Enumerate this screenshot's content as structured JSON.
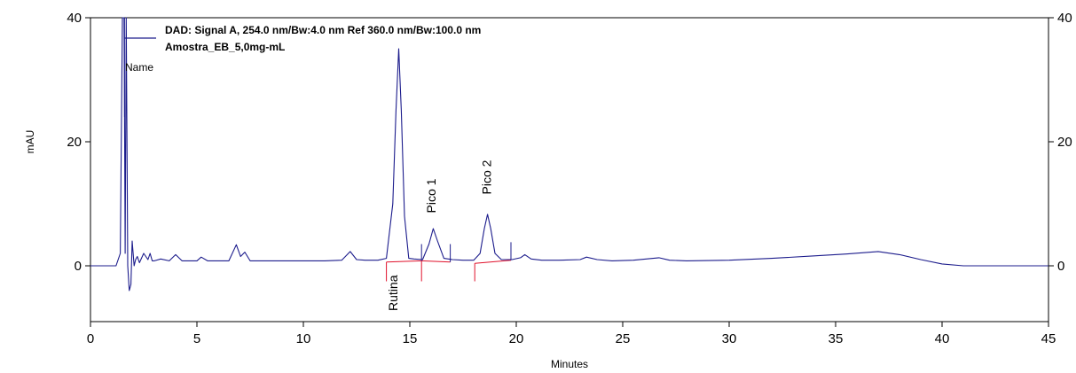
{
  "chart_data": {
    "type": "line",
    "xlabel": "Minutes",
    "ylabel": "mAU",
    "xlim": [
      0,
      45
    ],
    "ylim": [
      -9,
      40
    ],
    "x_ticks": [
      "0",
      "5",
      "10",
      "15",
      "20",
      "25",
      "30",
      "35",
      "40",
      "45"
    ],
    "y_ticks": [
      "0",
      "20",
      "40"
    ],
    "y_ticks_right": [
      "0",
      "20",
      "40"
    ],
    "legend": {
      "signal": "DAD: Signal A, 254.0 nm/Bw:4.0 nm Ref 360.0 nm/Bw:100.0 nm",
      "sample": "Amostra_EB_5,0mg-mL",
      "name_label": "Name"
    },
    "colors": {
      "trace": "#1c1c8c",
      "baseline": "#e0102a",
      "axis": "#000000"
    },
    "series": [
      {
        "name": "Amostra_EB_5,0mg-mL",
        "x": [
          0,
          1.2,
          1.4,
          1.5,
          1.58,
          1.63,
          1.68,
          1.75,
          1.82,
          1.9,
          1.96,
          2.05,
          2.12,
          2.2,
          2.3,
          2.5,
          2.7,
          2.8,
          2.9,
          3.0,
          3.3,
          3.7,
          4.0,
          4.3,
          5.0,
          5.2,
          5.5,
          6.0,
          6.5,
          6.85,
          7.05,
          7.25,
          7.5,
          8.0,
          9.0,
          10.0,
          11.0,
          11.8,
          12.2,
          12.5,
          12.9,
          13.5,
          13.9,
          14.2,
          14.35,
          14.48,
          14.6,
          14.75,
          14.95,
          15.2,
          15.6,
          15.9,
          16.1,
          16.3,
          16.6,
          17.0,
          17.5,
          18.0,
          18.3,
          18.5,
          18.65,
          18.8,
          19.0,
          19.3,
          19.8,
          20.2,
          20.4,
          20.7,
          21.2,
          22.0,
          23.0,
          23.3,
          23.8,
          24.5,
          25.5,
          26.7,
          27.2,
          28.0,
          30.0,
          32.0,
          34.0,
          35.5,
          37.0,
          38.0,
          39.0,
          40.0,
          41.0,
          42.0,
          43.0,
          44.0,
          45.0
        ],
        "y": [
          0,
          0,
          2,
          45,
          40,
          2,
          45,
          0,
          -4,
          -3,
          4,
          0,
          1,
          1.5,
          0.5,
          2,
          1,
          2,
          0.8,
          0.8,
          1.1,
          0.8,
          1.8,
          0.8,
          0.8,
          1.4,
          0.8,
          0.8,
          0.8,
          3.4,
          1.5,
          2.2,
          0.8,
          0.8,
          0.8,
          0.8,
          0.8,
          0.9,
          2.3,
          1.0,
          0.9,
          0.9,
          1.2,
          10,
          25,
          35,
          25,
          8,
          1.2,
          1.1,
          1.0,
          3.5,
          6,
          4,
          1.2,
          1.0,
          0.9,
          0.9,
          2,
          6,
          8.3,
          6,
          2,
          1.0,
          1.0,
          1.3,
          1.8,
          1.1,
          0.9,
          0.9,
          1.0,
          1.4,
          1.0,
          0.8,
          0.9,
          1.3,
          0.9,
          0.8,
          0.9,
          1.2,
          1.6,
          1.9,
          2.3,
          1.8,
          1.0,
          0.3,
          0,
          0,
          0,
          0,
          0
        ]
      }
    ],
    "peak_labels": [
      {
        "text": "Rutina",
        "x": 14.2,
        "y": -1.5
      },
      {
        "text": "Pico 1",
        "x": 16.0,
        "y": 8.5
      },
      {
        "text": "Pico 2",
        "x": 18.6,
        "y": 11.5
      }
    ],
    "baseline_segments": [
      {
        "x1": 13.9,
        "y1": 0.6,
        "x2": 15.55,
        "y2": 0.8
      },
      {
        "x1": 15.55,
        "y1": 0.8,
        "x2": 16.9,
        "y2": 0.6
      },
      {
        "x1": 18.05,
        "y1": 0.4,
        "x2": 19.75,
        "y2": 0.9
      }
    ],
    "integration_ticks": [
      {
        "x": 13.9,
        "from": -2.5,
        "to": 0.6,
        "color": "red"
      },
      {
        "x": 15.55,
        "from": -2.5,
        "to": 0.8,
        "color": "red"
      },
      {
        "x": 18.05,
        "from": -2.5,
        "to": 0.4,
        "color": "red"
      },
      {
        "x": 15.55,
        "from": 0.8,
        "to": 3.5,
        "color": "trace"
      },
      {
        "x": 16.9,
        "from": 0.6,
        "to": 3.5,
        "color": "trace"
      },
      {
        "x": 19.75,
        "from": 0.9,
        "to": 3.8,
        "color": "trace"
      },
      {
        "x": 1.6,
        "from": 24,
        "to": 40,
        "color": "trace"
      }
    ]
  }
}
